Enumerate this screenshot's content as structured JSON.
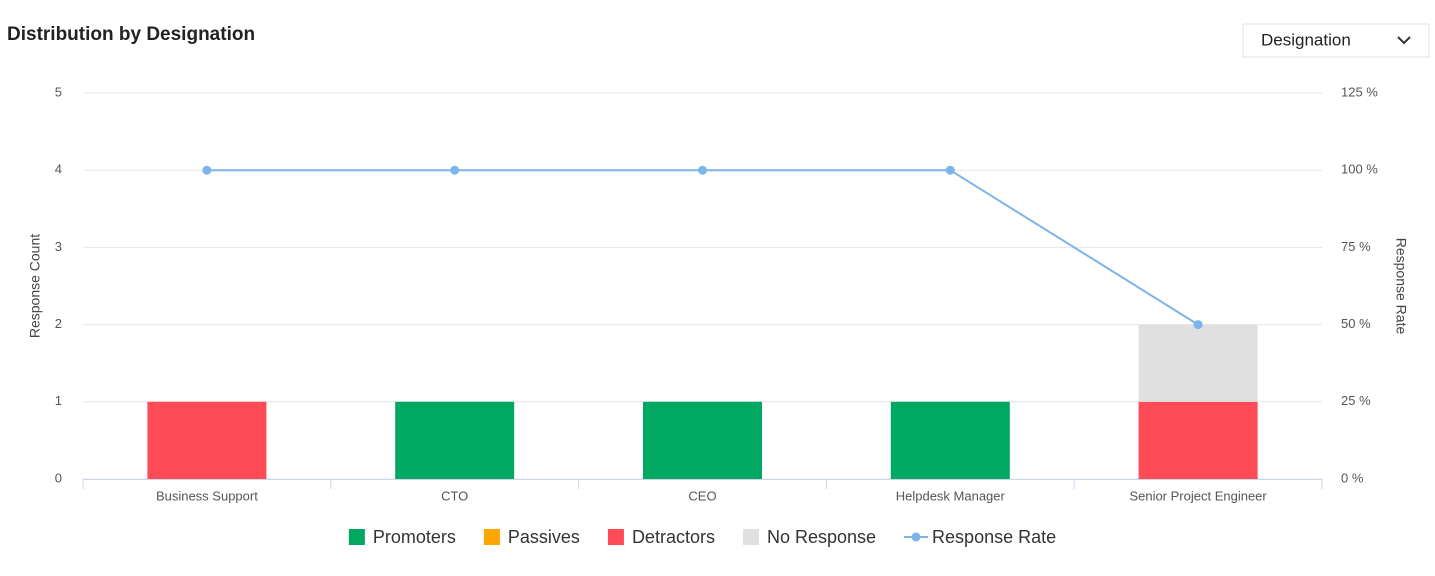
{
  "filter": {
    "label": "Designation"
  },
  "chart_data": {
    "type": "bar",
    "stacked": true,
    "title": "Distribution by Designation",
    "y_label": "Response Count",
    "y2_label": "Response Rate",
    "categories": [
      "Business Support",
      "CTO",
      "CEO",
      "Helpdesk Manager",
      "Senior Project Engineer"
    ],
    "series": [
      {
        "name": "Promoters",
        "color": "#00a862",
        "values": [
          0,
          1,
          1,
          1,
          0
        ]
      },
      {
        "name": "Passives",
        "color": "#ffa500",
        "values": [
          0,
          0,
          0,
          0,
          0
        ]
      },
      {
        "name": "Detractors",
        "color": "#ff4b55",
        "values": [
          1,
          0,
          0,
          0,
          1
        ]
      },
      {
        "name": "No Response",
        "color": "#e0e0e0",
        "values": [
          0,
          0,
          0,
          0,
          1
        ]
      },
      {
        "name": "Response Rate",
        "color": "#7cb5ec",
        "type": "line",
        "axis": "y2",
        "values": [
          100,
          100,
          100,
          100,
          50
        ]
      }
    ],
    "ylim": [
      0,
      5
    ],
    "yticks": [
      0,
      1,
      2,
      3,
      4,
      5
    ],
    "y2lim": [
      0,
      125
    ],
    "y2ticks": [
      {
        "value": 0,
        "label": "0 %"
      },
      {
        "value": 25,
        "label": "25 %"
      },
      {
        "value": 50,
        "label": "50 %"
      },
      {
        "value": 75,
        "label": "75 %"
      },
      {
        "value": 100,
        "label": "100 %"
      },
      {
        "value": 125,
        "label": "125 %"
      }
    ],
    "grid": true
  }
}
